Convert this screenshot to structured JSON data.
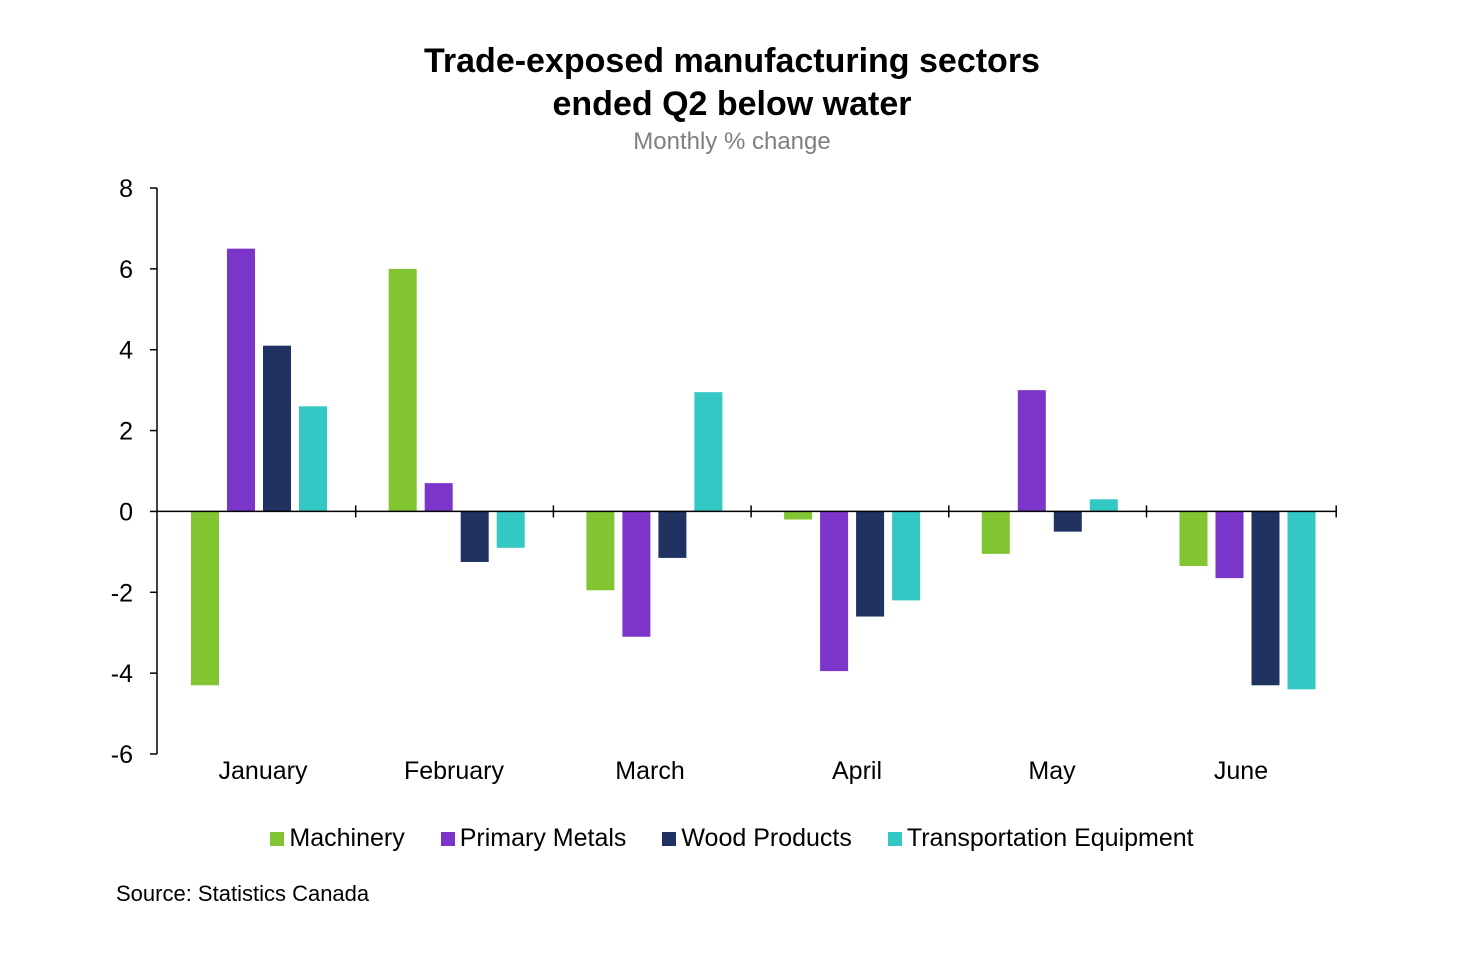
{
  "title_line1": "Trade-exposed manufacturing sectors",
  "title_line2": "ended Q2 below water",
  "subtitle": "Monthly % change",
  "source": "Source: Statistics Canada",
  "chart_data": {
    "type": "bar",
    "title": "Trade-exposed manufacturing sectors ended Q2 below water",
    "subtitle": "Monthly % change",
    "xlabel": "",
    "ylabel": "",
    "ylim": [
      -6,
      8
    ],
    "yticks": [
      8,
      6,
      4,
      2,
      0,
      -2,
      -4,
      -6
    ],
    "ytick_labels": [
      "8",
      "6",
      "4",
      "2",
      "0",
      "-2",
      "-4",
      "-6"
    ],
    "grid": false,
    "legend_position": "bottom",
    "categories": [
      "January",
      "February",
      "March",
      "April",
      "May",
      "June"
    ],
    "series": [
      {
        "name": "Machinery",
        "color": "#82c532",
        "values": [
          -4.3,
          6.0,
          -1.95,
          -0.2,
          -1.05,
          -1.35
        ]
      },
      {
        "name": "Primary Metals",
        "color": "#7b35c8",
        "values": [
          6.5,
          0.7,
          -3.1,
          -3.95,
          3.0,
          -1.65
        ]
      },
      {
        "name": "Wood Products",
        "color": "#1f3261",
        "values": [
          4.1,
          -1.25,
          -1.15,
          -2.6,
          -0.5,
          -4.3
        ]
      },
      {
        "name": "Transportation Equipment",
        "color": "#33c8c4",
        "values": [
          2.6,
          -0.9,
          2.95,
          -2.2,
          0.3,
          -4.4
        ]
      }
    ]
  }
}
